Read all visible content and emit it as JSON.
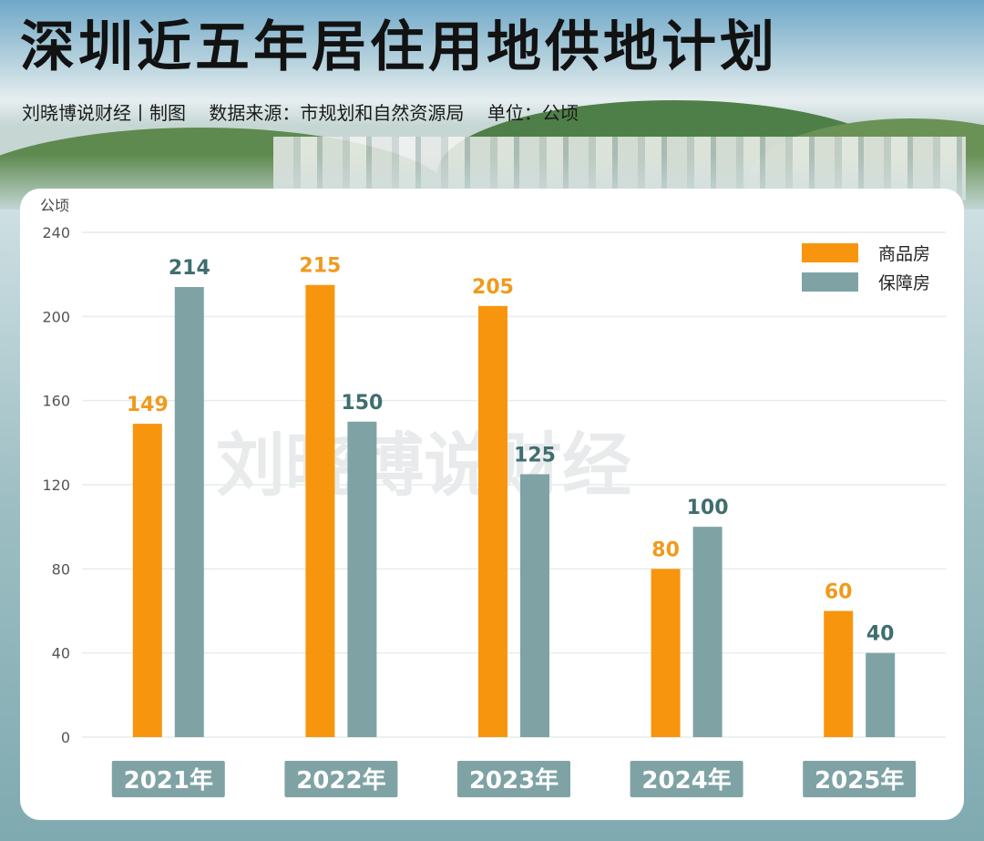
{
  "header": {
    "title": "深圳近五年居住用地供地计划",
    "subtitle": "刘晓博说财经丨制图    数据来源：市规划和自然资源局    单位：公顷"
  },
  "watermark": "刘晓博说财经",
  "colors": {
    "commercial": "#F7960E",
    "affordable": "#7FA3A5",
    "commercial_label": "#F09A1C",
    "affordable_label": "#3F6E70",
    "year_badge": "#7FA3A5",
    "grid": "#E6ECEC"
  },
  "chart_data": {
    "type": "bar",
    "title": "深圳近五年居住用地供地计划",
    "ylabel": "公顷",
    "ylim": [
      0,
      240
    ],
    "yticks": [
      0,
      40,
      80,
      120,
      160,
      200,
      240
    ],
    "grid": true,
    "legend_position": "top-right",
    "categories": [
      "2021年",
      "2022年",
      "2023年",
      "2024年",
      "2025年"
    ],
    "series": [
      {
        "name": "商品房",
        "values": [
          149,
          215,
          205,
          80,
          60
        ]
      },
      {
        "name": "保障房",
        "values": [
          214,
          150,
          125,
          100,
          40
        ]
      }
    ]
  }
}
